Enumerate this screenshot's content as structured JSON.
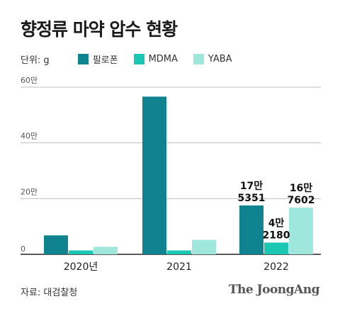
{
  "chart_data": {
    "type": "bar",
    "title": "향정류 마약 압수 현황",
    "unit_label": "단위: g",
    "categories": [
      "2020년",
      "2021",
      "2022"
    ],
    "series": [
      {
        "name": "필로폰",
        "color": "#0f8390",
        "values": [
          68000,
          566000,
          175351
        ]
      },
      {
        "name": "MDMA",
        "color": "#19c7b2",
        "values": [
          14000,
          14000,
          42180
        ]
      },
      {
        "name": "YABA",
        "color": "#9fe7dd",
        "values": [
          27000,
          52000,
          167602
        ]
      }
    ],
    "ylim": [
      0,
      600000
    ],
    "yticks": [
      {
        "value": 0,
        "label": "0"
      },
      {
        "value": 200000,
        "label": "20만"
      },
      {
        "value": 400000,
        "label": "40만"
      },
      {
        "value": 600000,
        "label": "60만"
      }
    ],
    "data_labels": [
      {
        "series": 0,
        "category": 2,
        "lines": [
          "17만",
          "5351"
        ]
      },
      {
        "series": 1,
        "category": 2,
        "lines": [
          "4만",
          "2180"
        ]
      },
      {
        "series": 2,
        "category": 2,
        "lines": [
          "16만",
          "7602"
        ]
      }
    ],
    "grid": true
  },
  "footer": {
    "source": "자료: 대검찰청",
    "brand": "The JoongAng"
  }
}
